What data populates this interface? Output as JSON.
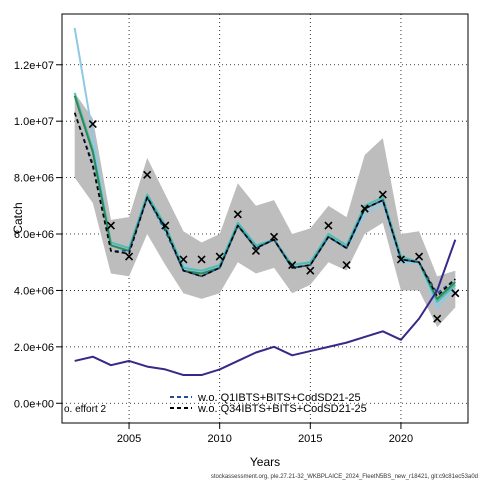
{
  "chart_data": {
    "type": "line",
    "title": "",
    "xlabel": "Years",
    "ylabel": "Catch",
    "xlim": [
      2001.3,
      2023.7
    ],
    "ylim": [
      -700000,
      13800000
    ],
    "x_ticks": [
      2005,
      2010,
      2015,
      2020
    ],
    "y_ticks": [
      {
        "value": 0,
        "label": "0.0e+00"
      },
      {
        "value": 2000000,
        "label": "2.0e+06"
      },
      {
        "value": 4000000,
        "label": "4.0e+06"
      },
      {
        "value": 6000000,
        "label": "6.0e+06"
      },
      {
        "value": 8000000,
        "label": "8.0e+06"
      },
      {
        "value": 10000000,
        "label": "1.0e+07"
      },
      {
        "value": 12000000,
        "label": "1.2e+07"
      }
    ],
    "grid": true,
    "x": [
      2002,
      2003,
      2004,
      2005,
      2006,
      2007,
      2008,
      2009,
      2010,
      2011,
      2012,
      2013,
      2014,
      2015,
      2016,
      2017,
      2018,
      2019,
      2020,
      2021,
      2022,
      2023
    ],
    "band": {
      "upper": [
        11000000,
        10100000,
        6500000,
        6600000,
        8700000,
        7400000,
        6100000,
        5700000,
        6000000,
        7800000,
        7000000,
        7200000,
        6000000,
        6200000,
        7000000,
        6600000,
        8800000,
        9400000,
        6000000,
        6100000,
        4500000,
        4700000
      ],
      "lower": [
        8000000,
        7100000,
        4600000,
        4500000,
        6000000,
        4900000,
        3900000,
        3700000,
        3900000,
        5000000,
        4600000,
        4800000,
        3900000,
        4200000,
        5000000,
        4700000,
        6000000,
        6400000,
        4000000,
        4000000,
        2700000,
        3400000
      ]
    },
    "series": [
      {
        "name": "",
        "color": "#8ecae6",
        "values": [
          13300000,
          9500000,
          5600000,
          5400000,
          7300000,
          6100000,
          4900000,
          4600000,
          4900000,
          6300000,
          5600000,
          5800000,
          4900000,
          5000000,
          5900000,
          5500000,
          6700000,
          7100000,
          5000000,
          5000000,
          3400000,
          4100000
        ]
      },
      {
        "name": "",
        "color": "#4dbdb4",
        "values": [
          11000000,
          9000000,
          5700000,
          5500000,
          7400000,
          6300000,
          4800000,
          4700000,
          4900000,
          6400000,
          5600000,
          5800000,
          4900000,
          5000000,
          6000000,
          5600000,
          7000000,
          7300000,
          5200000,
          5000000,
          3600000,
          4200000
        ]
      },
      {
        "name": "",
        "color": "#2e8b57",
        "values": [
          10900000,
          8900000,
          5600000,
          5400000,
          7300000,
          6200000,
          4700000,
          4600000,
          4800000,
          6300000,
          5500000,
          5800000,
          4800000,
          4900000,
          5900000,
          5500000,
          6900000,
          7200000,
          5100000,
          5000000,
          3700000,
          4300000
        ]
      },
      {
        "name": "w.o. Q1IBTS+BITS+CodSD21-25",
        "color": "#1f4e9a",
        "values": [
          10300000,
          8500000,
          5400000,
          5400000,
          7300000,
          6100000,
          4700000,
          4500000,
          4800000,
          6300000,
          5500000,
          5800000,
          4800000,
          4900000,
          5900000,
          5500000,
          6900000,
          7200000,
          5100000,
          5000000,
          3900000,
          4400000
        ]
      },
      {
        "name": "w.o. Q34IBTS+BITS+CodSD21-25",
        "color": "#000000",
        "values": [
          10300000,
          8400000,
          5400000,
          5300000,
          7300000,
          6200000,
          4700000,
          4500000,
          4800000,
          6300000,
          5500000,
          5800000,
          4800000,
          4900000,
          5900000,
          5500000,
          6900000,
          7200000,
          5100000,
          5000000,
          3800000,
          4400000
        ]
      },
      {
        "name": "",
        "color": "#352a87",
        "values": [
          1500000,
          1650000,
          1350000,
          1500000,
          1300000,
          1200000,
          1000000,
          1000000,
          1200000,
          1500000,
          1800000,
          2000000,
          1700000,
          1850000,
          2000000,
          2150000,
          2350000,
          2550000,
          2250000,
          3000000,
          4000000,
          5800000
        ]
      }
    ],
    "observed": {
      "x": [
        2003,
        2004,
        2005,
        2006,
        2007,
        2008,
        2009,
        2010,
        2011,
        2012,
        2013,
        2014,
        2015,
        2016,
        2017,
        2018,
        2019,
        2020,
        2021,
        2022,
        2023
      ],
      "values": [
        9900000,
        6300000,
        5200000,
        8100000,
        6300000,
        5100000,
        5100000,
        5200000,
        6700000,
        5400000,
        5900000,
        4900000,
        4700000,
        6300000,
        4900000,
        6900000,
        7400000,
        5100000,
        5200000,
        3000000,
        3900000
      ]
    },
    "legend": {
      "position": "bottom-center",
      "entries": [
        "w.o. Q1IBTS+BITS+CodSD21-25",
        "w.o. Q34IBTS+BITS+CodSD21-25"
      ]
    },
    "corner_label": "o. effort 2",
    "footer": "stockassessment.org, ple.27.21-32_WKBPLAICE_2024_FleetN5BS_new_r18421, git:c9c81ec53a0d"
  }
}
